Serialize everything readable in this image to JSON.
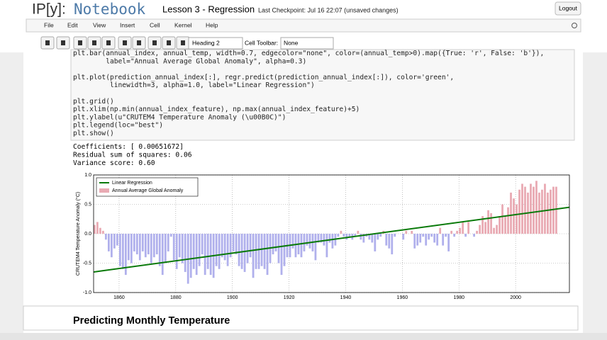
{
  "app": {
    "logo": "IP[y]:",
    "logo_word": "Notebook",
    "notebook_name": "Lesson 3 - Regression",
    "checkpoint": "Last Checkpoint: Jul 16 22:07 (unsaved changes)",
    "logout": "Logout",
    "menu": [
      "File",
      "Edit",
      "View",
      "Insert",
      "Cell",
      "Kernel",
      "Help"
    ],
    "toolbar": {
      "cell_type": "Heading 2",
      "cell_toolbar_label": "Cell Toolbar:",
      "cell_toolbar_value": "None"
    }
  },
  "code_cell": {
    "blocks": [
      [
        "plt.bar(annual_index, annual_temp, width=0.7, edgecolor=\"none\", color=(annual_temp>0).map({True: 'r', False: 'b'}),",
        "        label=\"Annual Average Global Anomaly\", alpha=0.3)"
      ],
      [
        "plt.plot(prediction_annual_index[:], regr.predict(prediction_annual_index[:]), color='green',",
        "         linewidth=3, alpha=1.0, label=\"Linear Regression\")"
      ],
      [
        "plt.grid()",
        "plt.xlim(np.min(annual_index_feature), np.max(annual_index_feature)+5)",
        "plt.ylabel(u\"CRUTEM4 Temperature Anomaly (\\u00B0C)\")",
        "plt.legend(loc=\"best\")",
        "plt.show()"
      ]
    ]
  },
  "output": [
    "Coefficients: [ 0.00651672]",
    "Residual sum of squares: 0.06",
    "Variance score: 0.60"
  ],
  "chart_data": {
    "type": "bar",
    "ylabel": "CRUTEM4 Temperature Anomaly (°C)",
    "xlim": [
      1851,
      2019
    ],
    "ylim": [
      -1,
      1
    ],
    "xticks": [
      1860,
      1880,
      1900,
      1920,
      1940,
      1960,
      1980,
      2000
    ],
    "yticks": [
      {
        "value": -1,
        "label": "-1.0"
      },
      {
        "value": -0.5,
        "label": "-0.5"
      },
      {
        "value": 0,
        "label": "0.0"
      },
      {
        "value": 0.5,
        "label": "0.5"
      },
      {
        "value": 1,
        "label": "1.0"
      }
    ],
    "grid": true,
    "legend": "upper left",
    "bar_width": 0.7,
    "series": [
      {
        "name": "Linear Regression",
        "type": "line",
        "color": "#0a7a0a",
        "x": [
          1851,
          2019
        ],
        "values": [
          -0.65,
          0.45
        ]
      },
      {
        "name": "Annual Average Global Anomaly",
        "type": "bar",
        "positive_color": "#e9aab3",
        "negative_color": "#b0b0ec",
        "x": [
          1851,
          1852,
          1853,
          1854,
          1855,
          1856,
          1857,
          1858,
          1859,
          1860,
          1861,
          1862,
          1863,
          1864,
          1865,
          1866,
          1867,
          1868,
          1869,
          1870,
          1871,
          1872,
          1873,
          1874,
          1875,
          1876,
          1877,
          1878,
          1879,
          1880,
          1881,
          1882,
          1883,
          1884,
          1885,
          1886,
          1887,
          1888,
          1889,
          1890,
          1891,
          1892,
          1893,
          1894,
          1895,
          1896,
          1897,
          1898,
          1899,
          1900,
          1901,
          1902,
          1903,
          1904,
          1905,
          1906,
          1907,
          1908,
          1909,
          1910,
          1911,
          1912,
          1913,
          1914,
          1915,
          1916,
          1917,
          1918,
          1919,
          1920,
          1921,
          1922,
          1923,
          1924,
          1925,
          1926,
          1927,
          1928,
          1929,
          1930,
          1931,
          1932,
          1933,
          1934,
          1935,
          1936,
          1937,
          1938,
          1939,
          1940,
          1941,
          1942,
          1943,
          1944,
          1945,
          1946,
          1947,
          1948,
          1949,
          1950,
          1951,
          1952,
          1953,
          1954,
          1955,
          1956,
          1957,
          1958,
          1959,
          1960,
          1961,
          1962,
          1963,
          1964,
          1965,
          1966,
          1967,
          1968,
          1969,
          1970,
          1971,
          1972,
          1973,
          1974,
          1975,
          1976,
          1977,
          1978,
          1979,
          1980,
          1981,
          1982,
          1983,
          1984,
          1985,
          1986,
          1987,
          1988,
          1989,
          1990,
          1991,
          1992,
          1993,
          1994,
          1995,
          1996,
          1997,
          1998,
          1999,
          2000,
          2001,
          2002,
          2003,
          2004,
          2005,
          2006,
          2007,
          2008,
          2009,
          2010,
          2011,
          2012,
          2013,
          2014
        ],
        "values": [
          0.15,
          0.2,
          0.1,
          0.05,
          -0.1,
          -0.3,
          -0.4,
          -0.25,
          -0.2,
          -0.55,
          -0.6,
          -0.7,
          -0.45,
          -0.5,
          -0.3,
          -0.35,
          -0.45,
          -0.3,
          -0.4,
          -0.35,
          -0.5,
          -0.4,
          -0.35,
          -0.55,
          -0.7,
          -0.5,
          -0.3,
          -0.05,
          -0.45,
          -0.6,
          -0.4,
          -0.5,
          -0.65,
          -0.85,
          -0.75,
          -0.6,
          -0.7,
          -0.55,
          -0.35,
          -0.7,
          -0.6,
          -0.7,
          -0.75,
          -0.55,
          -0.6,
          -0.4,
          -0.45,
          -0.55,
          -0.4,
          -0.3,
          -0.35,
          -0.55,
          -0.6,
          -0.65,
          -0.5,
          -0.4,
          -0.75,
          -0.6,
          -0.6,
          -0.55,
          -0.6,
          -0.7,
          -0.5,
          -0.35,
          -0.3,
          -0.5,
          -0.7,
          -0.55,
          -0.4,
          -0.4,
          -0.25,
          -0.4,
          -0.35,
          -0.4,
          -0.3,
          -0.2,
          -0.25,
          -0.3,
          -0.45,
          -0.15,
          -0.15,
          -0.2,
          -0.4,
          -0.15,
          -0.25,
          -0.2,
          -0.05,
          0.05,
          -0.05,
          -0.1,
          -0.05,
          -0.1,
          -0.05,
          0.05,
          -0.1,
          -0.15,
          -0.05,
          -0.1,
          -0.15,
          -0.3,
          -0.1,
          -0.05,
          0.05,
          -0.2,
          -0.25,
          -0.35,
          -0.05,
          0.0,
          0.0,
          -0.1,
          0.05,
          0.0,
          0.05,
          -0.25,
          -0.2,
          -0.15,
          -0.05,
          -0.2,
          -0.1,
          -0.05,
          -0.15,
          -0.2,
          0.1,
          -0.2,
          -0.05,
          -0.3,
          0.05,
          -0.05,
          0.05,
          0.1,
          0.2,
          -0.05,
          0.2,
          0.0,
          -0.05,
          0.05,
          0.15,
          0.3,
          0.2,
          0.4,
          0.35,
          0.1,
          0.15,
          0.3,
          0.5,
          0.3,
          0.45,
          0.7,
          0.6,
          0.5,
          0.75,
          0.85,
          0.8,
          0.7,
          0.85,
          0.8,
          0.9,
          0.7,
          0.75,
          0.85,
          0.7,
          0.75,
          0.8,
          0.8
        ]
      }
    ]
  },
  "heading_cell": {
    "text": "Predicting Monthly Temperature"
  }
}
